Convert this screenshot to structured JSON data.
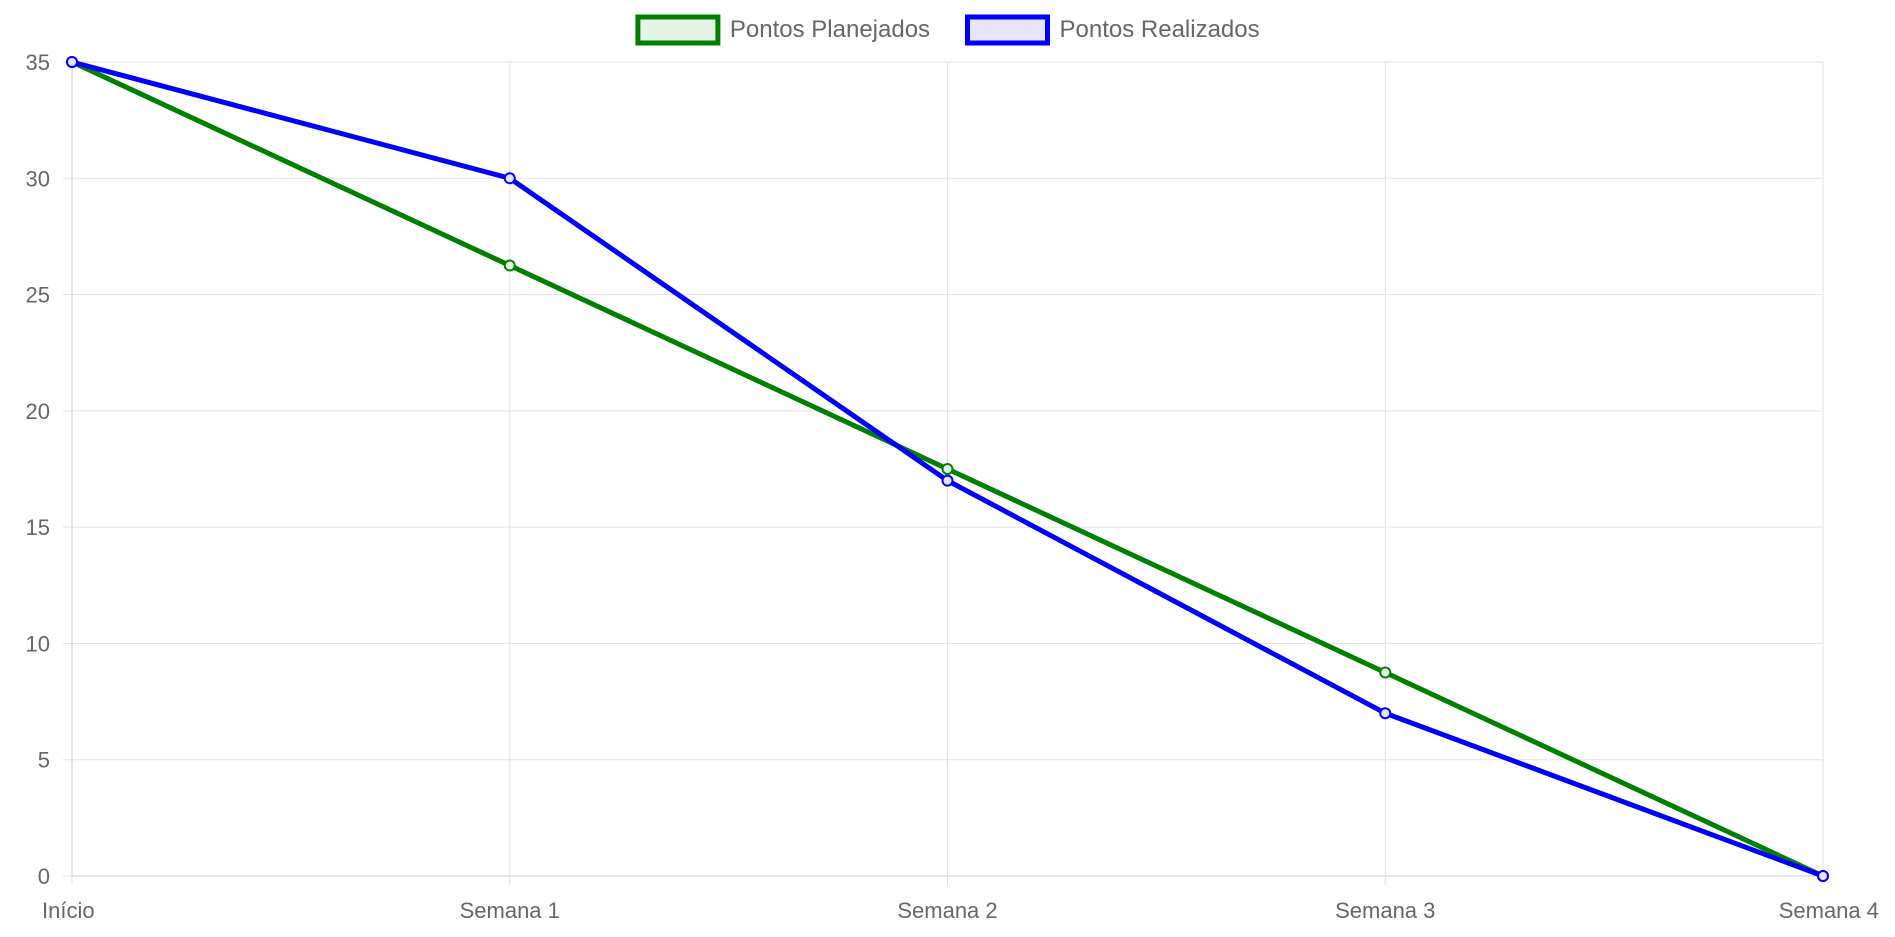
{
  "chart_data": {
    "type": "line",
    "categories": [
      "Início",
      "Semana 1",
      "Semana 2",
      "Semana 3",
      "Semana 4"
    ],
    "series": [
      {
        "name": "Pontos Planejados",
        "values": [
          35,
          26.25,
          17.5,
          8.75,
          0
        ],
        "color": "#008000",
        "fill": "#e6f2e6"
      },
      {
        "name": "Pontos Realizados",
        "values": [
          35,
          30,
          17,
          7,
          0
        ],
        "color": "#0000ff",
        "fill": "#e6e6ff"
      }
    ],
    "yticks": [
      0,
      5,
      10,
      15,
      20,
      25,
      30,
      35
    ],
    "ylim": [
      0,
      35
    ],
    "grid": true,
    "legend_position": "top-center",
    "title": "",
    "xlabel": "",
    "ylabel": ""
  }
}
